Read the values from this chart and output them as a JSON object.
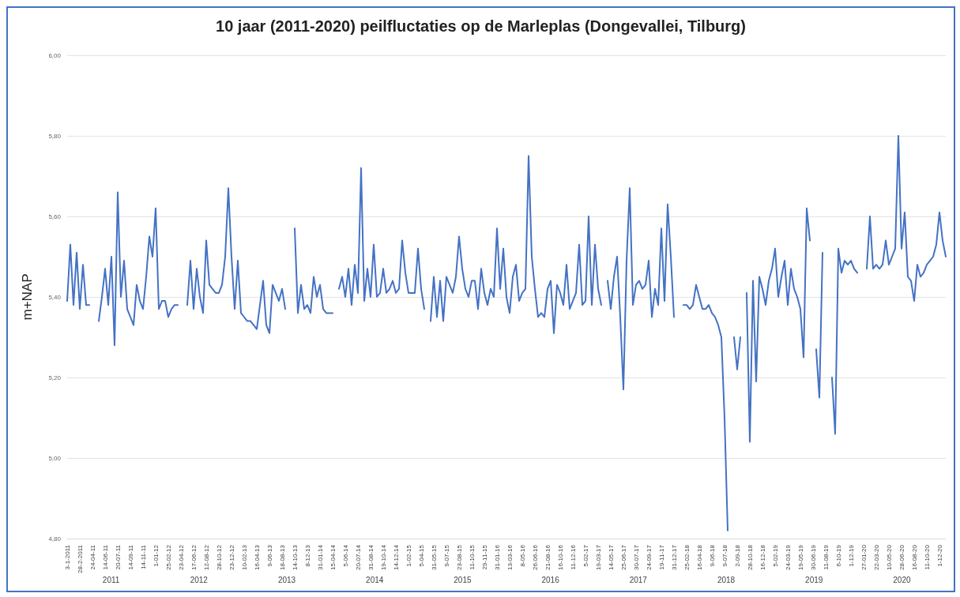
{
  "chart_data": {
    "type": "line",
    "title": "10 jaar (2011-2020) peilfluctaties op de Marleplas (Dongevallei, Tilburg)",
    "ylabel": "m+NAP",
    "categories": [
      "3-1-2011",
      null,
      null,
      null,
      "28-2-2011",
      null,
      null,
      null,
      "24-04-11",
      null,
      null,
      null,
      "14-06-11",
      null,
      null,
      null,
      "20-07-11",
      null,
      null,
      null,
      "14-09-11",
      null,
      null,
      null,
      "14-11-11",
      null,
      null,
      null,
      "1-01-12",
      null,
      null,
      null,
      "25-02-12",
      null,
      null,
      null,
      "23-04-12",
      null,
      null,
      null,
      "17-06-12",
      null,
      null,
      null,
      "12-08-12",
      null,
      null,
      null,
      "28-10-12",
      null,
      null,
      null,
      "23-12-12",
      null,
      null,
      null,
      "10-02-13",
      null,
      null,
      null,
      "16-04-13",
      null,
      null,
      null,
      "9-06-13",
      null,
      null,
      null,
      "18-08-13",
      null,
      null,
      null,
      "14-10-13",
      null,
      null,
      null,
      "8-12-13",
      null,
      null,
      null,
      "31-01-14",
      null,
      null,
      null,
      "15-04-14",
      null,
      null,
      null,
      "5-06-14",
      null,
      null,
      null,
      "20-07-14",
      null,
      null,
      null,
      "31-08-14",
      null,
      null,
      null,
      "19-10-14",
      null,
      null,
      null,
      "14-12-14",
      null,
      null,
      null,
      "1-02-15",
      null,
      null,
      null,
      "5-04-15",
      null,
      null,
      null,
      "31-05-15",
      null,
      null,
      null,
      "9-07-15",
      null,
      null,
      null,
      "23-08-15",
      null,
      null,
      null,
      "11-10-15",
      null,
      null,
      null,
      "29-11-15",
      null,
      null,
      null,
      "31-01-16",
      null,
      null,
      null,
      "13-03-16",
      null,
      null,
      null,
      "8-05-16",
      null,
      null,
      null,
      "26-06-16",
      null,
      null,
      null,
      "21-08-16",
      null,
      null,
      null,
      "16-10-16",
      null,
      null,
      null,
      "11-12-16",
      null,
      null,
      null,
      "5-02-17",
      null,
      null,
      null,
      "19-03-17",
      null,
      null,
      null,
      "14-05-17",
      null,
      null,
      null,
      "25-06-17",
      null,
      null,
      null,
      "30-07-17",
      null,
      null,
      null,
      "24-09-17",
      null,
      null,
      null,
      "19-11-17",
      null,
      null,
      null,
      "31-12-17",
      null,
      null,
      null,
      "25-02-18",
      null,
      null,
      null,
      "16-04-18",
      null,
      null,
      null,
      "9-06-18",
      null,
      null,
      null,
      "9-07-18",
      null,
      null,
      null,
      "2-09-18",
      null,
      null,
      null,
      "28-10-18",
      null,
      null,
      null,
      "16-12-18",
      null,
      null,
      null,
      "5-02-19",
      null,
      null,
      null,
      "24-03-19",
      null,
      null,
      null,
      "19-05-19",
      null,
      null,
      null,
      "30-06-19",
      null,
      null,
      null,
      "11-08-19",
      null,
      null,
      null,
      "6-10-19",
      null,
      null,
      null,
      "1-12-19",
      null,
      null,
      null,
      "27-01-20",
      null,
      null,
      null,
      "22-03-20",
      null,
      null,
      null,
      "10-05-20",
      null,
      null,
      null,
      "28-06-20",
      null,
      null,
      null,
      "16-08-20",
      null,
      null,
      null,
      "11-10-20",
      null,
      null,
      null,
      "1-12-20",
      null,
      null
    ],
    "values": [
      5.39,
      5.53,
      5.38,
      5.51,
      5.37,
      5.48,
      5.38,
      5.38,
      null,
      null,
      5.34,
      5.4,
      5.47,
      5.38,
      5.5,
      5.28,
      5.66,
      5.4,
      5.49,
      5.37,
      5.35,
      5.33,
      5.43,
      5.39,
      5.37,
      5.45,
      5.55,
      5.5,
      5.62,
      5.37,
      5.39,
      5.39,
      5.35,
      5.37,
      5.38,
      5.38,
      null,
      null,
      5.38,
      5.49,
      5.37,
      5.47,
      5.4,
      5.36,
      5.54,
      5.43,
      5.42,
      5.41,
      5.41,
      5.43,
      5.5,
      5.67,
      5.5,
      5.37,
      5.49,
      5.36,
      5.35,
      5.34,
      5.34,
      5.33,
      5.32,
      5.38,
      5.44,
      5.33,
      5.31,
      5.43,
      5.41,
      5.39,
      5.42,
      5.37,
      null,
      null,
      5.57,
      5.36,
      5.43,
      5.37,
      5.38,
      5.36,
      5.45,
      5.4,
      5.43,
      5.37,
      5.36,
      5.36,
      5.36,
      null,
      5.42,
      5.45,
      5.4,
      5.47,
      5.38,
      5.48,
      5.41,
      5.72,
      5.39,
      5.47,
      5.4,
      5.53,
      5.4,
      5.41,
      5.47,
      5.41,
      5.42,
      5.44,
      5.41,
      5.42,
      5.54,
      5.46,
      5.41,
      5.41,
      5.41,
      5.52,
      5.42,
      5.37,
      null,
      5.34,
      5.45,
      5.35,
      5.44,
      5.34,
      5.45,
      5.43,
      5.41,
      5.45,
      5.55,
      5.47,
      5.42,
      5.4,
      5.44,
      5.44,
      5.37,
      5.47,
      5.41,
      5.38,
      5.42,
      5.4,
      5.57,
      5.42,
      5.52,
      5.4,
      5.36,
      5.45,
      5.48,
      5.39,
      5.41,
      5.42,
      5.75,
      5.5,
      5.42,
      5.35,
      5.36,
      5.35,
      5.42,
      5.44,
      5.31,
      5.43,
      5.41,
      5.38,
      5.48,
      5.37,
      5.39,
      5.41,
      5.53,
      5.38,
      5.39,
      5.6,
      5.38,
      5.53,
      5.42,
      5.38,
      null,
      5.44,
      5.37,
      5.45,
      5.5,
      5.35,
      5.17,
      5.49,
      5.67,
      5.38,
      5.43,
      5.44,
      5.42,
      5.43,
      5.49,
      5.35,
      5.42,
      5.38,
      5.57,
      5.39,
      5.63,
      5.5,
      5.35,
      null,
      null,
      5.38,
      5.38,
      5.37,
      5.38,
      5.43,
      5.4,
      5.37,
      5.37,
      5.38,
      5.36,
      5.35,
      5.33,
      5.3,
      5.1,
      4.82,
      null,
      5.3,
      5.22,
      5.3,
      null,
      5.41,
      5.04,
      5.44,
      5.19,
      5.45,
      5.42,
      5.38,
      5.44,
      5.47,
      5.52,
      5.4,
      5.45,
      5.49,
      5.38,
      5.47,
      5.42,
      5.4,
      5.37,
      5.25,
      5.62,
      5.54,
      null,
      5.27,
      5.15,
      5.51,
      null,
      null,
      5.2,
      5.06,
      5.52,
      5.46,
      5.49,
      5.48,
      5.49,
      5.47,
      5.46,
      null,
      null,
      5.47,
      5.6,
      5.47,
      5.48,
      5.47,
      5.48,
      5.54,
      5.48,
      5.5,
      5.52,
      5.8,
      5.52,
      5.61,
      5.45,
      5.44,
      5.39,
      5.48,
      5.45,
      5.46,
      5.48,
      5.49,
      5.5,
      5.53,
      5.61,
      5.54,
      5.5
    ],
    "color": "#4472c4",
    "marker": "none",
    "line_style": "solid",
    "grid": "y",
    "ylim": [
      4.8,
      6.0
    ],
    "yticks": [
      {
        "value": 4.8,
        "label": "4,80"
      },
      {
        "value": 5.0,
        "label": "5,00"
      },
      {
        "value": 5.2,
        "label": "5,20"
      },
      {
        "value": 5.4,
        "label": "5,40"
      },
      {
        "value": 5.6,
        "label": "5,60"
      },
      {
        "value": 5.8,
        "label": "5,80"
      },
      {
        "value": 6.0,
        "label": "6,00"
      }
    ],
    "annotations": [
      "2011",
      "2012",
      "2013",
      "2014",
      "2015",
      "2016",
      "2017",
      "2018",
      "2019",
      "2020"
    ]
  }
}
